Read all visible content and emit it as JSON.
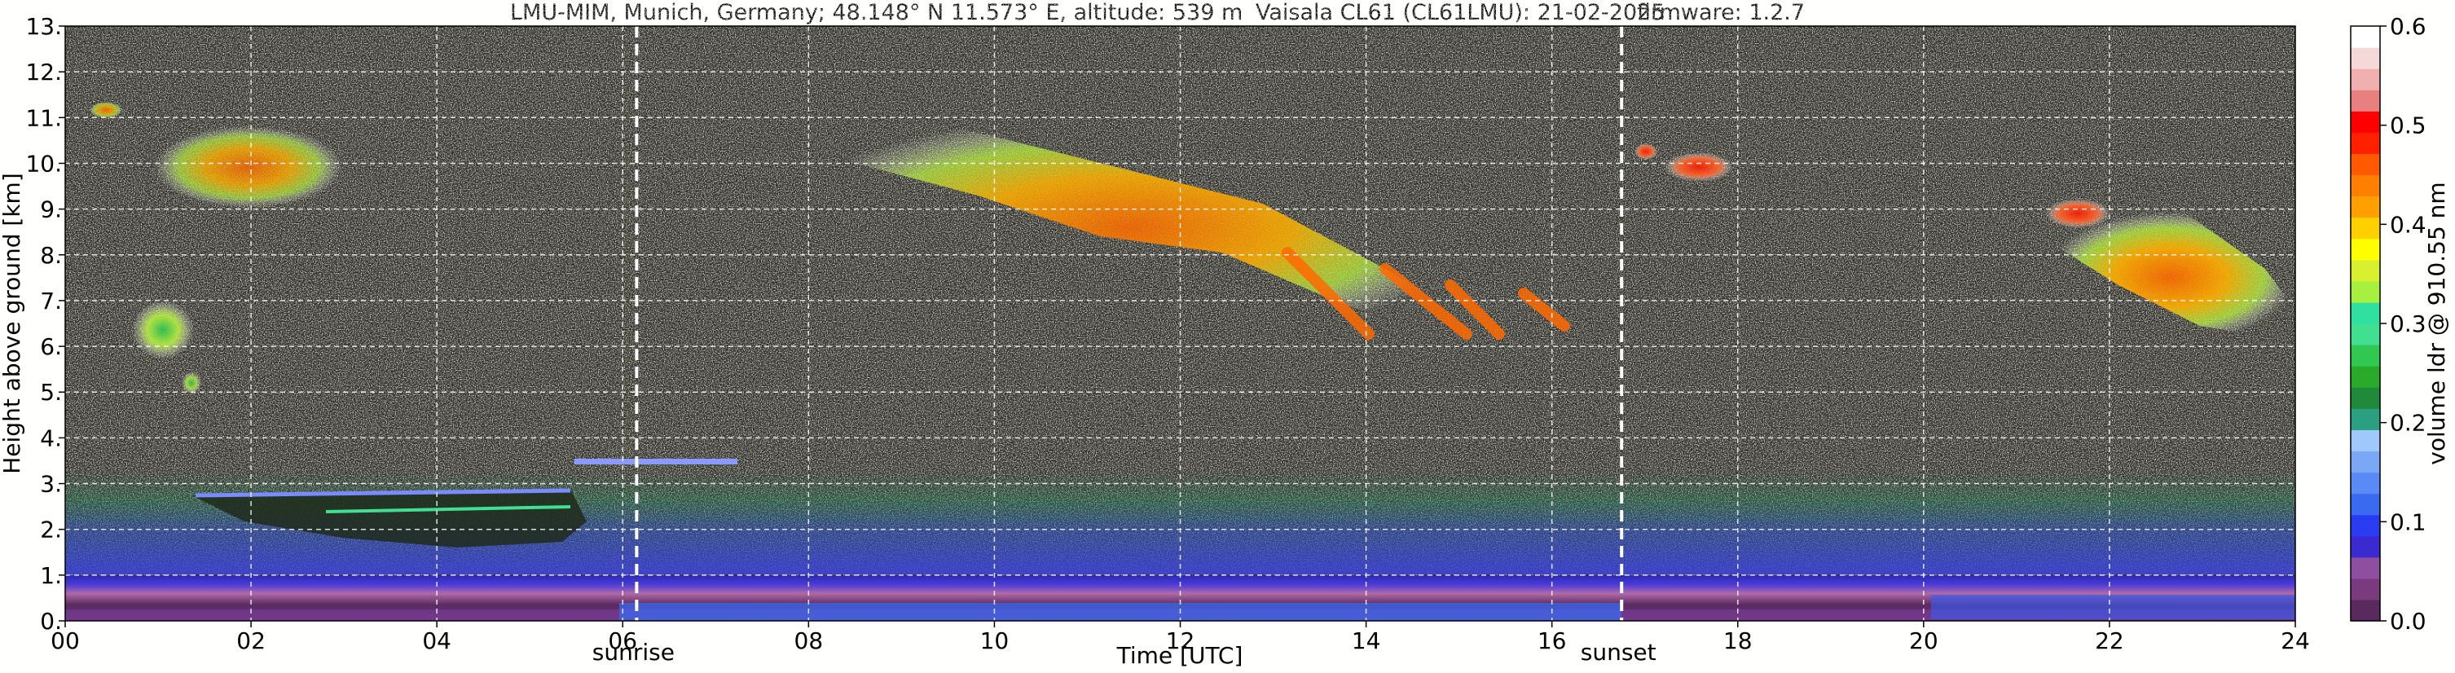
{
  "figure": {
    "title_left": "LMU-MIM, Munich, Germany; 48.148° N 11.573° E, altitude: 539 m",
    "title_mid": "Vaisala CL61 (CL61LMU): 21-02-2025",
    "title_right": "firmware: 1.2.7"
  },
  "chart_data": {
    "type": "heatmap",
    "title": "LMU-MIM, Munich, Germany; 48.148° N 11.573° E, altitude: 539 m    Vaisala CL61 (CL61LMU): 21-02-2025    firmware: 1.2.7",
    "xlabel": "Time [UTC]",
    "ylabel": "Height above ground [km]",
    "xlim": [
      0,
      24
    ],
    "ylim": [
      0,
      13
    ],
    "x_ticks": [
      0,
      2,
      4,
      6,
      8,
      10,
      12,
      14,
      16,
      18,
      20,
      22,
      24
    ],
    "x_tick_labels": [
      "00",
      "02",
      "04",
      "06",
      "08",
      "10",
      "12",
      "14",
      "16",
      "18",
      "20",
      "22",
      "24"
    ],
    "y_ticks": [
      0,
      1,
      2,
      3,
      4,
      5,
      6,
      7,
      8,
      9,
      10,
      11,
      12,
      13
    ],
    "y_tick_labels": [
      "0.",
      "1.",
      "2.",
      "3.",
      "4.",
      "5.",
      "6.",
      "7.",
      "8.",
      "9.",
      "10.",
      "11.",
      "12.",
      "13."
    ],
    "grid": true,
    "markers": [
      {
        "label": "sunrise",
        "x": 6.15
      },
      {
        "label": "sunset",
        "x": 16.75
      }
    ],
    "colorbar": {
      "label": "volume ldr @ 910.55 nm",
      "range": [
        0.0,
        0.6
      ],
      "ticks": [
        0.0,
        0.1,
        0.2,
        0.3,
        0.4,
        0.5,
        0.6
      ],
      "tick_labels": [
        "0.0",
        "0.1",
        "0.2",
        "0.3",
        "0.4",
        "0.5",
        "0.6"
      ],
      "colors": [
        "#5a2a5e",
        "#7a3a7e",
        "#8e4fa0",
        "#3a2ad0",
        "#2a3cf0",
        "#3a6af0",
        "#5a8af5",
        "#7aa8f5",
        "#a0c8fa",
        "#2aa080",
        "#1e8a3a",
        "#2aaa2a",
        "#30c850",
        "#40e090",
        "#30e0a0",
        "#a8f040",
        "#d8f030",
        "#ffff00",
        "#ffd000",
        "#ffa000",
        "#ff8000",
        "#ff5a00",
        "#ff2000",
        "#ff0000",
        "#e88080",
        "#f0b0b0",
        "#f5d8d8",
        "#ffffff"
      ]
    },
    "features": [
      {
        "type": "noise_background",
        "x": [
          0,
          24
        ],
        "y": [
          3,
          13
        ]
      },
      {
        "type": "boundary_layer",
        "x": [
          0,
          24
        ],
        "y": [
          0,
          1.0
        ],
        "ldr": [
          0.0,
          0.1
        ]
      },
      {
        "type": "ice_cloud",
        "x": [
          0.9,
          3.0
        ],
        "y": [
          9.0,
          11.3
        ],
        "ldr": [
          0.3,
          0.5
        ]
      },
      {
        "type": "ice_cloud",
        "x": [
          0.7,
          1.4
        ],
        "y": [
          5.8,
          7.0
        ],
        "ldr": [
          0.25,
          0.35
        ]
      },
      {
        "type": "low_layer",
        "x": [
          1.4,
          5.6
        ],
        "y": [
          1.3,
          2.7
        ],
        "ldr": [
          0.0,
          0.2
        ]
      },
      {
        "type": "ice_cloud",
        "x": [
          7.8,
          15.8
        ],
        "y": [
          6.2,
          11.0
        ],
        "ldr": [
          0.3,
          0.5
        ]
      },
      {
        "type": "ice_cloud",
        "x": [
          16.9,
          17.6
        ],
        "y": [
          9.8,
          10.5
        ],
        "ldr": [
          0.45,
          0.55
        ]
      },
      {
        "type": "ice_cloud",
        "x": [
          21.2,
          24.0
        ],
        "y": [
          6.0,
          9.2
        ],
        "ldr": [
          0.3,
          0.5
        ]
      }
    ]
  }
}
